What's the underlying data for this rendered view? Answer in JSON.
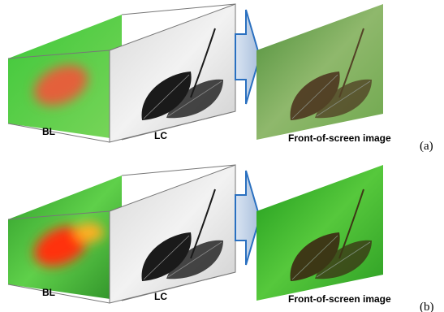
{
  "panels": [
    {
      "bl_label": "BL",
      "lc_label": "LC",
      "output_label": "Front-of-screen image",
      "tag": "(a)"
    },
    {
      "bl_label": "BL",
      "lc_label": "LC",
      "output_label": "Front-of-screen image",
      "tag": "(b)"
    }
  ]
}
